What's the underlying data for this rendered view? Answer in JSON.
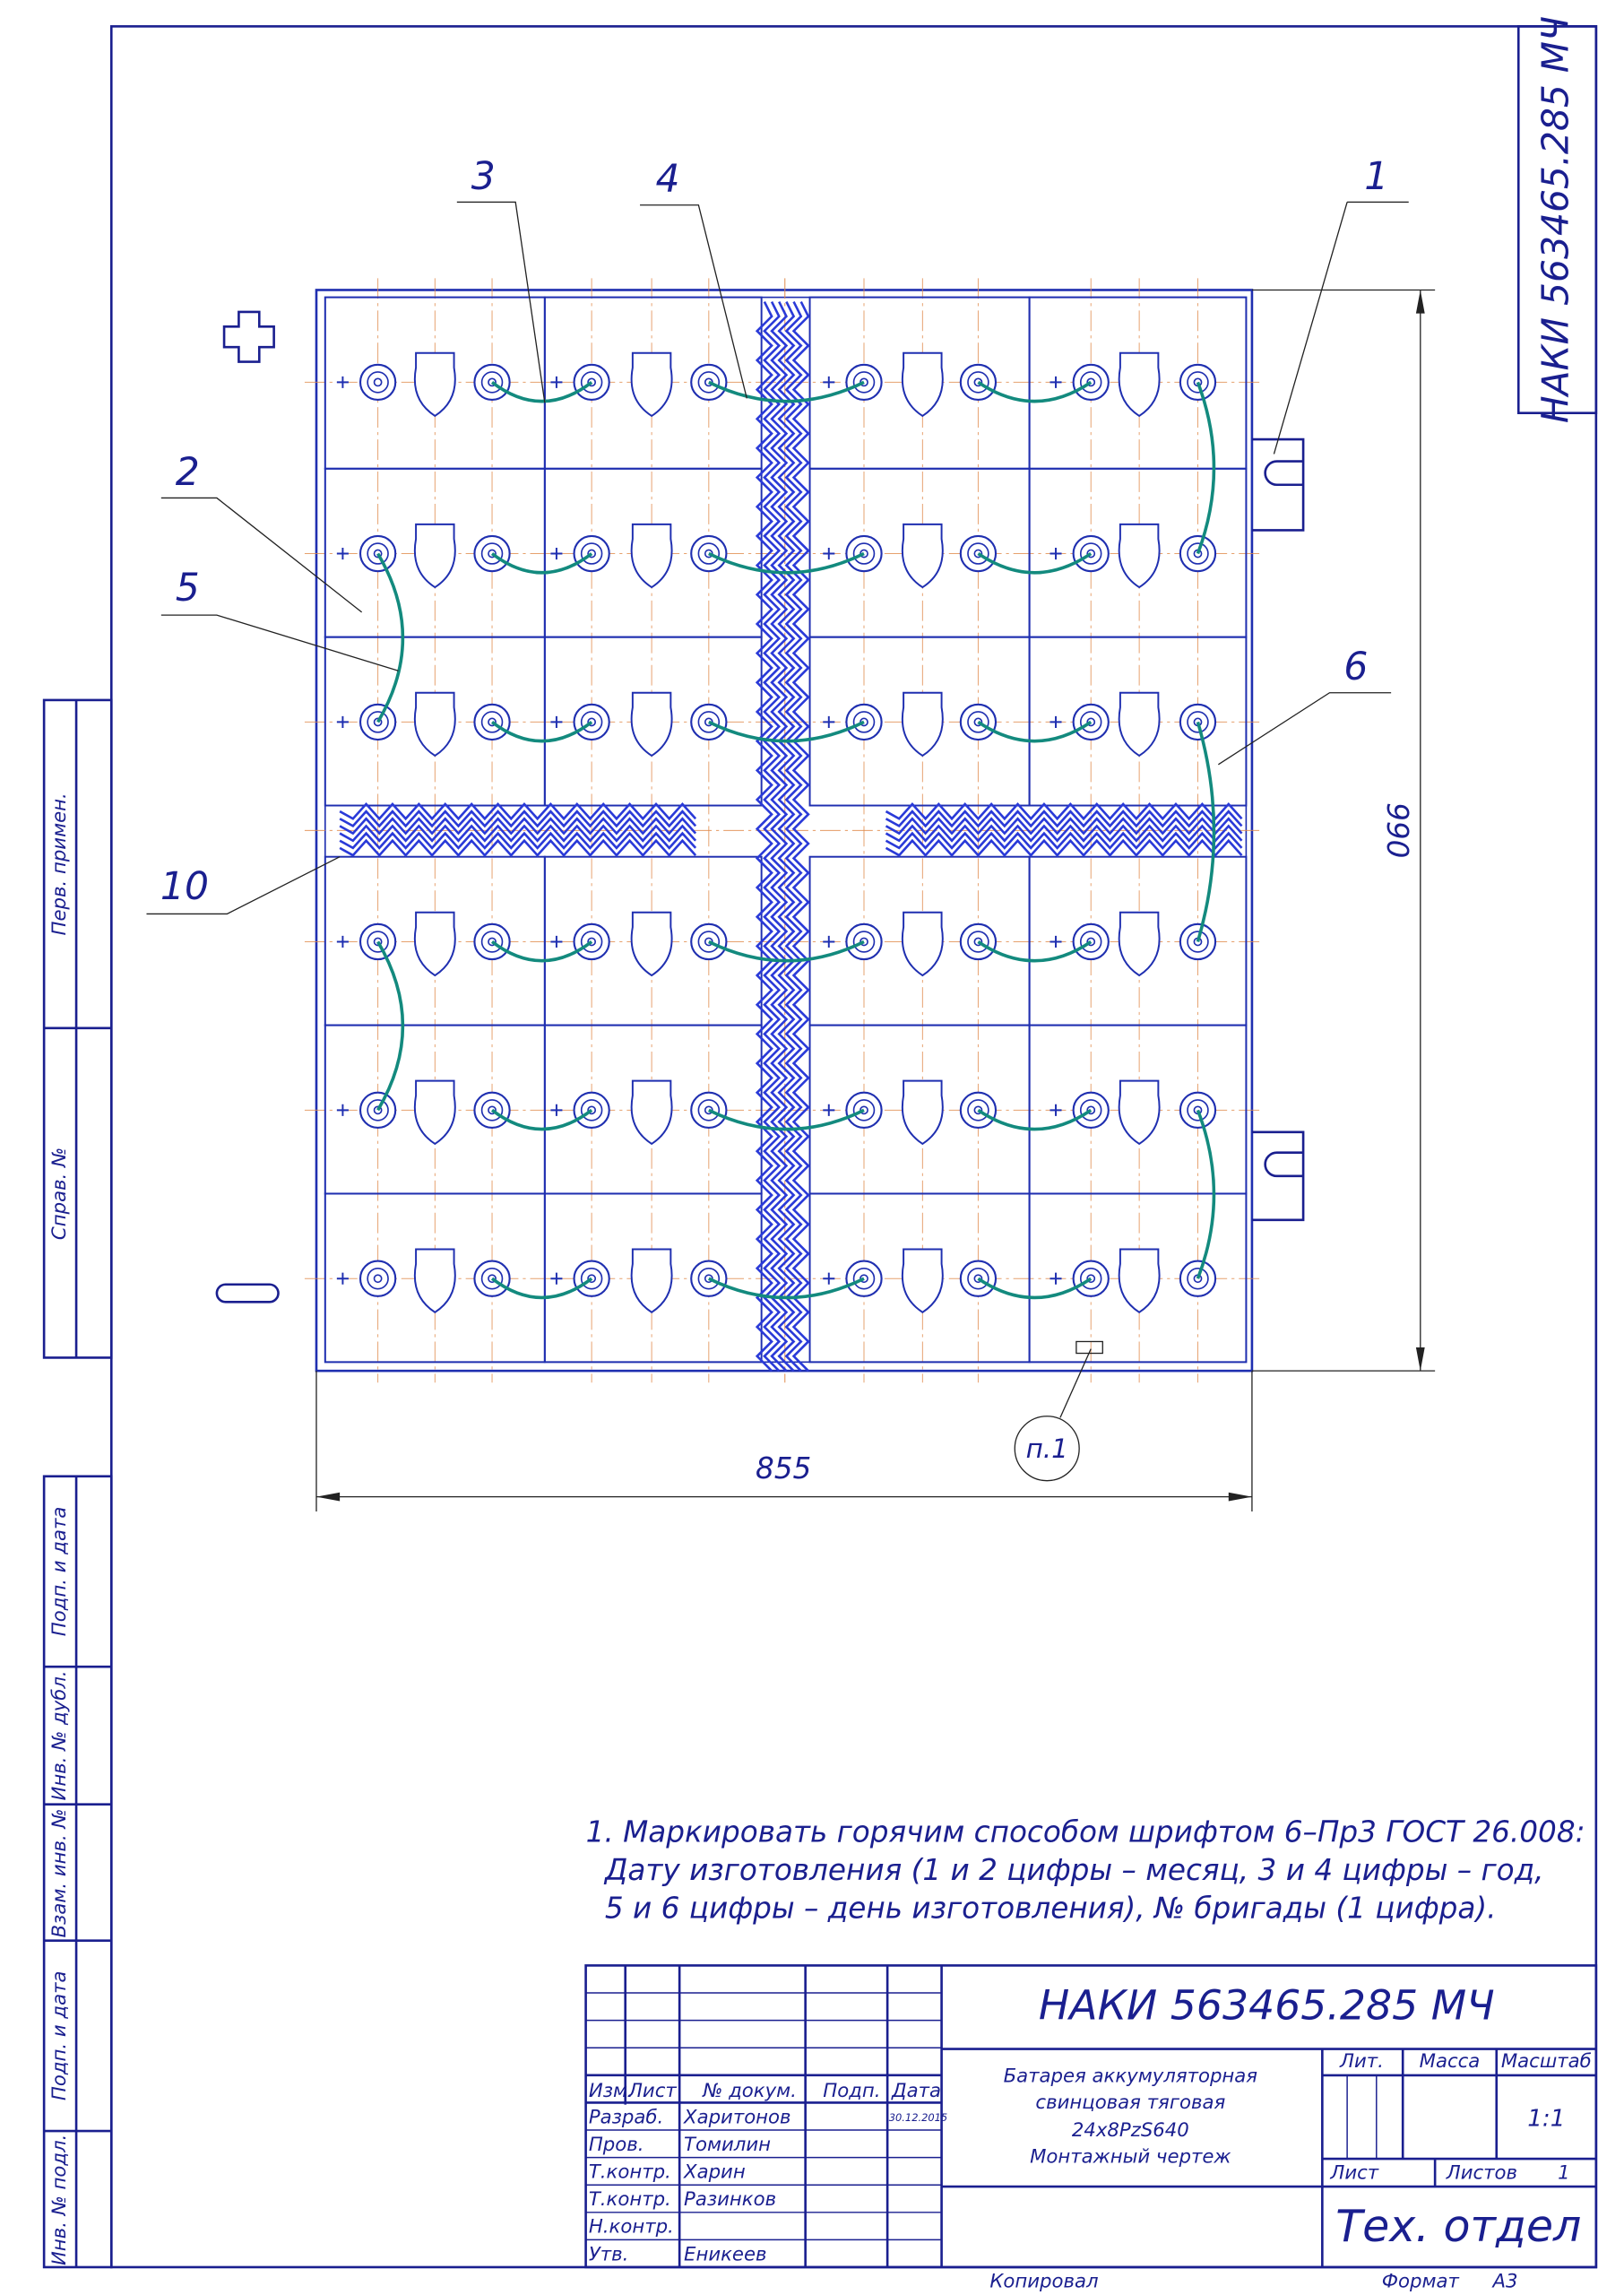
{
  "stamp": "НАКИ 563465.285 МЧ",
  "callouts": [
    "1",
    "2",
    "3",
    "4",
    "5",
    "6",
    "10"
  ],
  "dimensions": {
    "height": "990",
    "width": "855",
    "note_ref": "п.1"
  },
  "side_strip": [
    "Перв. примен.",
    "Справ. №",
    "Подп. и дата",
    "Инв. № дубл.",
    "Взам. инв. №",
    "Подп. и дата",
    "Инв. № подл."
  ],
  "notes": [
    "1. Маркировать горячим способом шрифтом 6–Пр3 ГОСТ 26.008:",
    "Дату изготовления (1 и 2 цифры – месяц, 3 и 4 цифры – год,",
    "5 и 6 цифры – день изготовления), № бригады (1 цифра)."
  ],
  "title_block": {
    "designation": "НАКИ 563465.285 МЧ",
    "description": [
      "Батарея аккумуляторная",
      "свинцовая тяговая",
      "24х8PzS640",
      "Монтажный чертеж"
    ],
    "headers": [
      "Изм.",
      "Лист",
      "№ докум.",
      "Подп.",
      "Дата"
    ],
    "rows": [
      [
        "Разраб.",
        "Харитонов",
        "30.12.2015"
      ],
      [
        "Пров.",
        "Томилин"
      ],
      [
        "Т.контр.",
        "Харин"
      ],
      [
        "Т.контр.",
        "Разинков"
      ],
      [
        "Н.контр."
      ],
      [
        "Утв.",
        "Еникеев"
      ]
    ],
    "lit": "Лит.",
    "mass": "Масса",
    "scale_label": "Масштаб",
    "scale": "1:1",
    "sheet": "Лист",
    "sheets_label": "Листов",
    "sheets": "1",
    "organization": "Тех. отдел"
  },
  "footer": {
    "copied": "Копировал",
    "format_label": "Формат",
    "format": "А3"
  }
}
